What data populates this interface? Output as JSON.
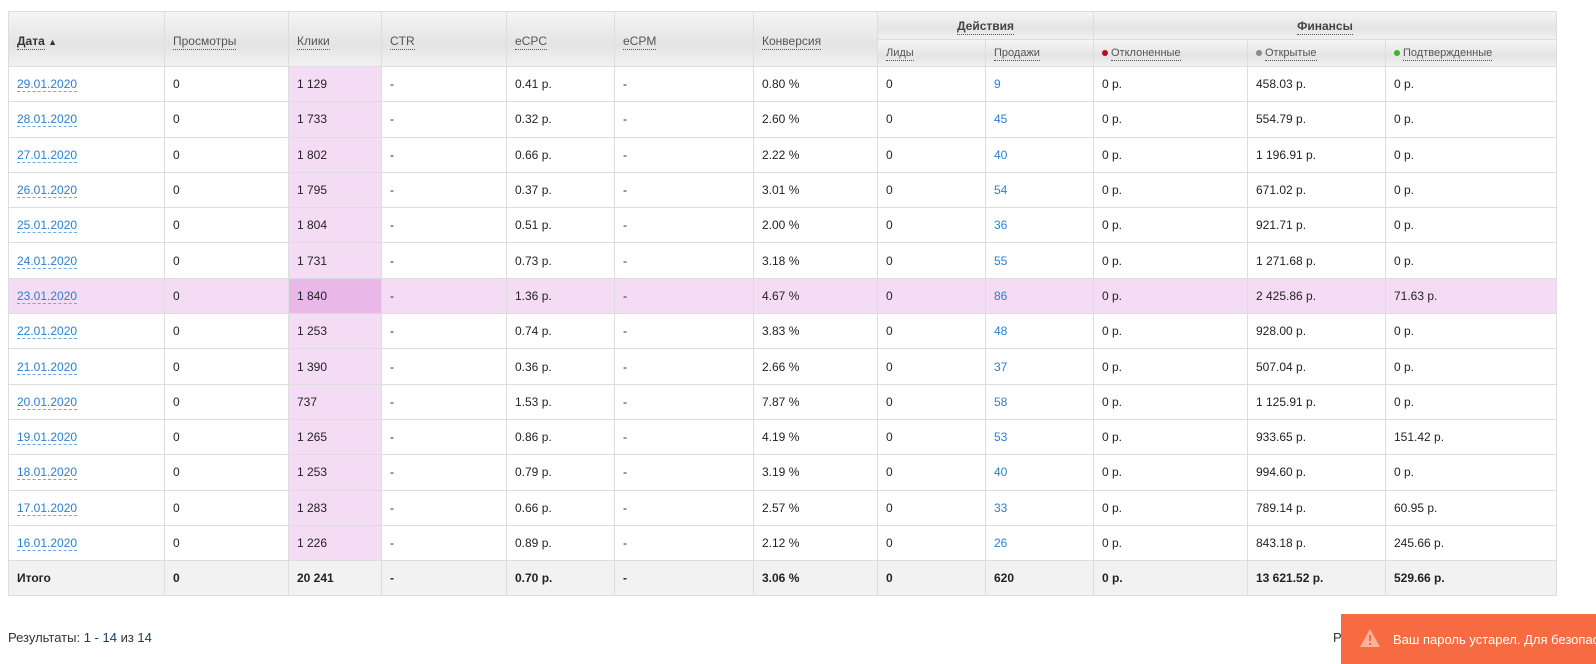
{
  "headers": {
    "date": "Дата",
    "views": "Просмотры",
    "clicks": "Клики",
    "ctr": "CTR",
    "ecpc": "eCPC",
    "ecpm": "eCPM",
    "conv": "Конверсия",
    "actions": "Действия",
    "finance": "Финансы",
    "leads": "Лиды",
    "sales": "Продажи",
    "rejected": "Отклоненные",
    "open": "Открытые",
    "confirmed": "Подтвержденные"
  },
  "status_colors": {
    "rejected": "#b01020",
    "open": "#888888",
    "confirmed": "#33bb22"
  },
  "rows": [
    [
      "29.01.2020",
      "0",
      "1 129",
      "-",
      "0.41 р.",
      "-",
      "0.80 %",
      "0",
      "9",
      "0 р.",
      "458.03 р.",
      "0 р."
    ],
    [
      "28.01.2020",
      "0",
      "1 733",
      "-",
      "0.32 р.",
      "-",
      "2.60 %",
      "0",
      "45",
      "0 р.",
      "554.79 р.",
      "0 р."
    ],
    [
      "27.01.2020",
      "0",
      "1 802",
      "-",
      "0.66 р.",
      "-",
      "2.22 %",
      "0",
      "40",
      "0 р.",
      "1 196.91 р.",
      "0 р."
    ],
    [
      "26.01.2020",
      "0",
      "1 795",
      "-",
      "0.37 р.",
      "-",
      "3.01 %",
      "0",
      "54",
      "0 р.",
      "671.02 р.",
      "0 р."
    ],
    [
      "25.01.2020",
      "0",
      "1 804",
      "-",
      "0.51 р.",
      "-",
      "2.00 %",
      "0",
      "36",
      "0 р.",
      "921.71 р.",
      "0 р."
    ],
    [
      "24.01.2020",
      "0",
      "1 731",
      "-",
      "0.73 р.",
      "-",
      "3.18 %",
      "0",
      "55",
      "0 р.",
      "1 271.68 р.",
      "0 р."
    ],
    [
      "23.01.2020",
      "0",
      "1 840",
      "-",
      "1.36 р.",
      "-",
      "4.67 %",
      "0",
      "86",
      "0 р.",
      "2 425.86 р.",
      "71.63 р."
    ],
    [
      "22.01.2020",
      "0",
      "1 253",
      "-",
      "0.74 р.",
      "-",
      "3.83 %",
      "0",
      "48",
      "0 р.",
      "928.00 р.",
      "0 р."
    ],
    [
      "21.01.2020",
      "0",
      "1 390",
      "-",
      "0.36 р.",
      "-",
      "2.66 %",
      "0",
      "37",
      "0 р.",
      "507.04 р.",
      "0 р."
    ],
    [
      "20.01.2020",
      "0",
      "737",
      "-",
      "1.53 р.",
      "-",
      "7.87 %",
      "0",
      "58",
      "0 р.",
      "1 125.91 р.",
      "0 р."
    ],
    [
      "19.01.2020",
      "0",
      "1 265",
      "-",
      "0.86 р.",
      "-",
      "4.19 %",
      "0",
      "53",
      "0 р.",
      "933.65 р.",
      "151.42 р."
    ],
    [
      "18.01.2020",
      "0",
      "1 253",
      "-",
      "0.79 р.",
      "-",
      "3.19 %",
      "0",
      "40",
      "0 р.",
      "994.60 р.",
      "0 р."
    ],
    [
      "17.01.2020",
      "0",
      "1 283",
      "-",
      "0.66 р.",
      "-",
      "2.57 %",
      "0",
      "33",
      "0 р.",
      "789.14 р.",
      "60.95 р."
    ],
    [
      "16.01.2020",
      "0",
      "1 226",
      "-",
      "0.89 р.",
      "-",
      "2.12 %",
      "0",
      "26",
      "0 р.",
      "843.18 р.",
      "245.66 р."
    ]
  ],
  "highlighted_row": 6,
  "total": [
    "Итого",
    "0",
    "20 241",
    "-",
    "0.70 р.",
    "-",
    "3.06 %",
    "0",
    "620",
    "0 р.",
    "13 621.52 р.",
    "529.66 р."
  ],
  "footer": {
    "prefix": "Результаты: ",
    "range": "1 - 14",
    "of": " из ",
    "count": "14",
    "right_partial": "Р"
  },
  "toast": {
    "text": "Ваш пароль устарел. Для безопасности"
  }
}
